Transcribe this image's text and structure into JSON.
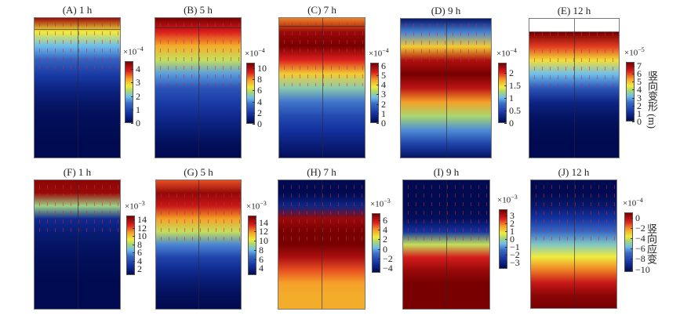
{
  "chart_data": [
    {
      "type": "heatmap",
      "title": "(A) 1 h",
      "multiplier": "×10",
      "exp": "−4",
      "range": [
        0,
        4.6
      ],
      "ticks": [
        "0",
        "1",
        "2",
        "3",
        "4"
      ],
      "tick_values": [
        0,
        1,
        2,
        3,
        4
      ],
      "profile": [
        0.95,
        0.6,
        0.42,
        0.28,
        0.18,
        0.1,
        0.05,
        0.02,
        0.01,
        0,
        0
      ],
      "top_band": true,
      "arrows_depth": 0.35
    },
    {
      "type": "heatmap",
      "title": "(B) 5 h",
      "multiplier": "×10",
      "exp": "−4",
      "range": [
        0,
        11
      ],
      "ticks": [
        "0",
        "2",
        "4",
        "6",
        "8",
        "10"
      ],
      "tick_values": [
        0,
        2,
        4,
        6,
        8,
        10
      ],
      "profile": [
        1,
        0.85,
        0.7,
        0.55,
        0.38,
        0.25,
        0.18,
        0.12,
        0.07,
        0.02,
        0
      ],
      "top_band": true,
      "arrows_depth": 0.45
    },
    {
      "type": "heatmap",
      "title": "(C) 7 h",
      "multiplier": "×10",
      "exp": "−4",
      "range": [
        0,
        6.3
      ],
      "ticks": [
        "0",
        "1",
        "2",
        "3",
        "4",
        "5",
        "6"
      ],
      "tick_values": [
        0,
        1,
        2,
        3,
        4,
        5,
        6
      ],
      "profile": [
        0.75,
        0.95,
        1,
        0.85,
        0.65,
        0.47,
        0.33,
        0.22,
        0.15,
        0.08,
        0.02
      ],
      "top_band": true,
      "arrows_depth": 0.45
    },
    {
      "type": "heatmap",
      "title": "(D) 9 h",
      "multiplier": "×10",
      "exp": "−4",
      "range": [
        0,
        2.4
      ],
      "ticks": [
        "0",
        "0.5",
        "1",
        "1.5",
        "2"
      ],
      "tick_values": [
        0,
        0.5,
        1,
        1.5,
        2
      ],
      "profile": [
        0.05,
        0.35,
        0.65,
        0.92,
        1,
        0.9,
        0.72,
        0.52,
        0.36,
        0.2,
        0.04
      ],
      "top_band": false,
      "arrows_depth": 0.3
    },
    {
      "type": "heatmap",
      "title": "(E) 12 h",
      "multiplier": "×10",
      "exp": "−5",
      "range": [
        0,
        7.5
      ],
      "ticks": [
        "0",
        "1",
        "2",
        "3",
        "4",
        "5",
        "6",
        "7"
      ],
      "tick_values": [
        0,
        1,
        2,
        3,
        4,
        5,
        6,
        7
      ],
      "profile": [
        1,
        1,
        0.82,
        0.62,
        0.42,
        0.25,
        0.1,
        0.04,
        0.01,
        0,
        0
      ],
      "blank_top": true,
      "arrows_depth": 0.45,
      "colorbar_label": "竖向变形 (m)"
    },
    {
      "type": "heatmap",
      "title": "(F) 1 h",
      "multiplier": "×10",
      "exp": "−3",
      "range": [
        0.5,
        15
      ],
      "ticks": [
        "2",
        "4",
        "6",
        "8",
        "10",
        "12",
        "14"
      ],
      "tick_values": [
        2,
        4,
        6,
        8,
        10,
        12,
        14
      ],
      "profile": [
        0.97,
        0.95,
        0.5,
        0.12,
        0.07,
        0.04,
        0.02,
        0.01,
        0,
        0,
        0
      ],
      "arrows_depth": 0.4
    },
    {
      "type": "heatmap",
      "title": "(G) 5 h",
      "multiplier": "×10",
      "exp": "−3",
      "range": [
        2.5,
        15.5
      ],
      "ticks": [
        "4",
        "6",
        "8",
        "10",
        "12",
        "14"
      ],
      "tick_values": [
        4,
        6,
        8,
        10,
        12,
        14
      ],
      "profile": [
        0.8,
        0.96,
        0.88,
        0.72,
        0.55,
        0.35,
        0.2,
        0.12,
        0.06,
        0.02,
        0
      ],
      "arrows_depth": 0.45
    },
    {
      "type": "heatmap",
      "title": "(H) 7 h",
      "multiplier": "×10",
      "exp": "−3",
      "range": [
        -5,
        7.5
      ],
      "ticks": [
        "−4",
        "−2",
        "0",
        "2",
        "4",
        "6"
      ],
      "tick_values": [
        -4,
        -2,
        0,
        2,
        4,
        6
      ],
      "profile": [
        0,
        0,
        0.1,
        0.95,
        1,
        1,
        0.92,
        0.8,
        0.72,
        0.7,
        0.7
      ],
      "arrows_depth": 0.45
    },
    {
      "type": "heatmap",
      "title": "(I) 9 h",
      "multiplier": "×10",
      "exp": "−3",
      "range": [
        -3.8,
        3.8
      ],
      "ticks": [
        "−3",
        "−2",
        "−1",
        "0",
        "1",
        "2",
        "3"
      ],
      "tick_values": [
        -3,
        -2,
        -1,
        0,
        1,
        2,
        3
      ],
      "profile": [
        0,
        0,
        0,
        0.02,
        0.15,
        0.55,
        0.86,
        0.95,
        1,
        1,
        1
      ],
      "arrows_depth": 0.45
    },
    {
      "type": "heatmap",
      "title": "(J) 12 h",
      "multiplier": "×10",
      "exp": "−4",
      "range": [
        -10.5,
        1
      ],
      "ticks": [
        "−10",
        "−8",
        "−6",
        "−4",
        "−2",
        "0"
      ],
      "tick_values": [
        -10,
        -8,
        -6,
        -4,
        -2,
        0
      ],
      "profile": [
        0,
        0,
        0.05,
        0.15,
        0.3,
        0.45,
        0.6,
        0.75,
        0.88,
        0.97,
        1
      ],
      "arrows_depth": 0.45,
      "colorbar_label": "竖向应变"
    }
  ]
}
